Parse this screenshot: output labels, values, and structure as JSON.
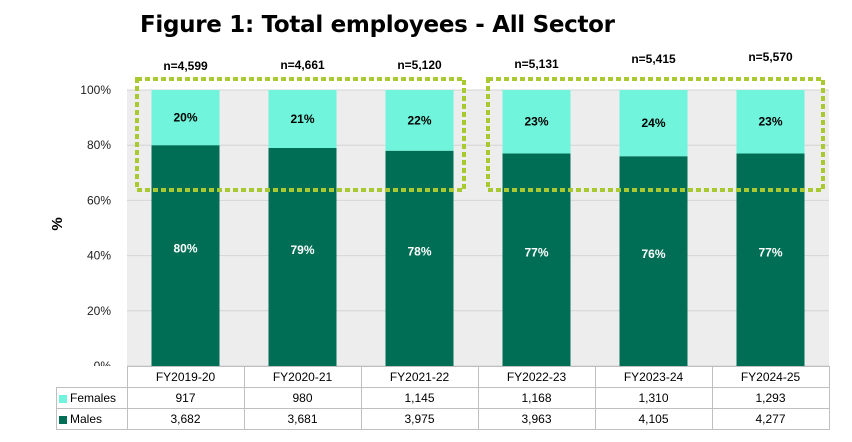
{
  "title": "Figure 1: Total employees - All Sector",
  "colors": {
    "females": "#70F4DC",
    "males": "#006E55",
    "plot_bg": "#EDEDED",
    "highlight": "#A9C931"
  },
  "chart_data": {
    "type": "bar",
    "stacked": true,
    "title": "Figure 1: Total employees - All Sector",
    "ylabel": "%",
    "ylim": [
      0,
      100
    ],
    "yticks": [
      "0%",
      "20%",
      "40%",
      "60%",
      "80%",
      "100%"
    ],
    "categories": [
      "FY2019-20",
      "FY2020-21",
      "FY2021-22",
      "FY2022-23",
      "FY2023-24",
      "FY2024-25"
    ],
    "totals": [
      "n=4,599",
      "n=4,661",
      "n=5,120",
      "n=5,131",
      "n=5,415",
      "n=5,570"
    ],
    "series": [
      {
        "name": "Males",
        "values": [
          80,
          79,
          78,
          77,
          76,
          77
        ],
        "labels": [
          "80%",
          "79%",
          "78%",
          "77%",
          "76%",
          "77%"
        ]
      },
      {
        "name": "Females",
        "values": [
          20,
          21,
          22,
          23,
          24,
          23
        ],
        "labels": [
          "20%",
          "21%",
          "22%",
          "23%",
          "24%",
          "23%"
        ]
      }
    ],
    "table": {
      "rows": [
        {
          "name": "Females",
          "values": [
            "917",
            "980",
            "1,145",
            "1,168",
            "1,310",
            "1,293"
          ]
        },
        {
          "name": "Males",
          "values": [
            "3,682",
            "3,681",
            "3,975",
            "3,963",
            "4,105",
            "4,277"
          ]
        }
      ]
    },
    "grid": true
  }
}
